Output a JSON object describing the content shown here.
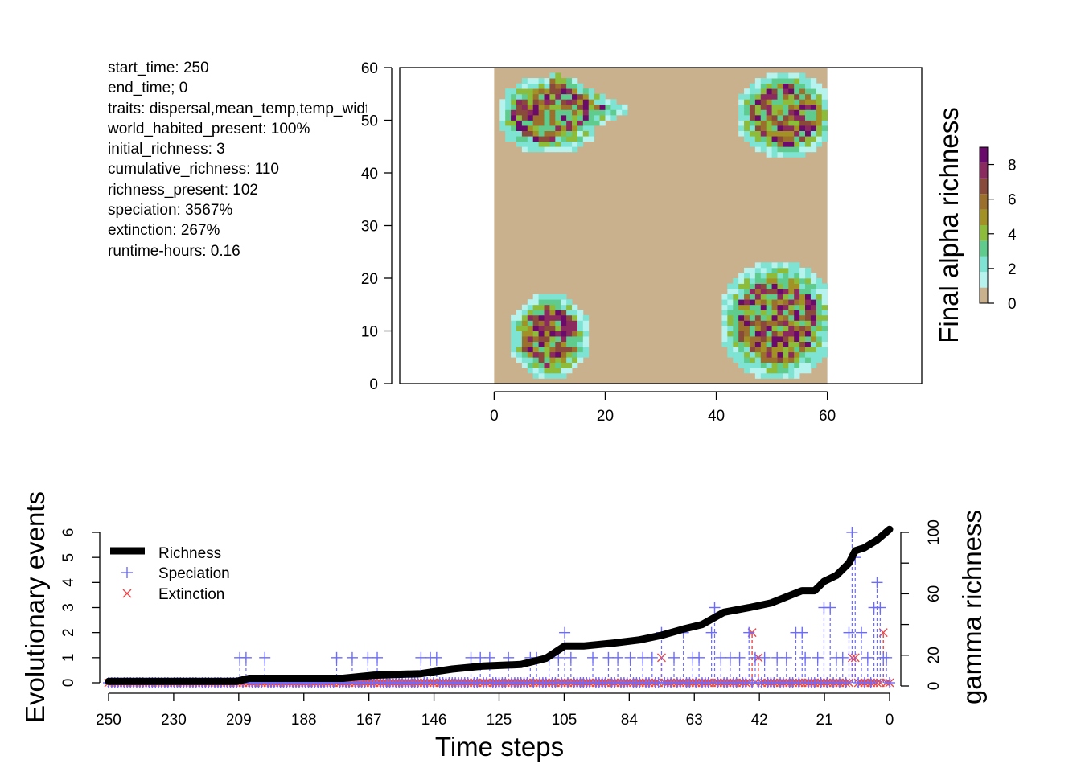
{
  "summary": [
    "start_time: 250",
    "end_time; 0",
    "traits: dispersal,mean_temp,temp_width",
    "world_habited_present: 100%",
    "initial_richness: 3",
    "cumulative_richness: 110",
    "richness_present: 102",
    "speciation: 3567%",
    "extinction: 267%",
    "runtime-hours: 0.16"
  ],
  "colors": {
    "background_cell": "#c8b18c",
    "richness_line": "#000000",
    "speciation": "#6b6bff",
    "extinction": "#e8474c",
    "richness_palette": [
      "#c8b18c",
      "#b6f2ee",
      "#7fe3d3",
      "#5fcc8e",
      "#8cbc3a",
      "#a29225",
      "#9b6f2c",
      "#8a4a3b",
      "#8a2a5e",
      "#6a0a6a"
    ]
  },
  "chart_data": [
    {
      "type": "heatmap",
      "xlabel": "",
      "ylabel": "",
      "xlim": [
        -17,
        77
      ],
      "ylim": [
        0,
        60
      ],
      "xticks": [
        0,
        20,
        40,
        60
      ],
      "yticks": [
        0,
        10,
        20,
        30,
        40,
        50,
        60
      ],
      "grid_extent": [
        0,
        60,
        0,
        60
      ],
      "colorbar": {
        "label": "Final alpha richness",
        "ticks": [
          0,
          2,
          4,
          6,
          8
        ],
        "range": [
          0,
          9
        ]
      },
      "patches": [
        {
          "center": [
            10,
            51
          ],
          "description": "upper-left teardrop patch",
          "max_richness": 9
        },
        {
          "center": [
            52,
            51
          ],
          "description": "upper-right patch",
          "max_richness": 9
        },
        {
          "center": [
            10,
            9
          ],
          "description": "lower-left patch",
          "max_richness": 9
        },
        {
          "center": [
            50,
            12
          ],
          "description": "lower-right patch",
          "max_richness": 9
        }
      ]
    },
    {
      "type": "line",
      "xlabel": "Time steps",
      "ylabel": "Evolutionary events",
      "ylabel_right": "gamma richness",
      "x_ticks": [
        "250",
        "230",
        "209",
        "188",
        "167",
        "146",
        "125",
        "105",
        "84",
        "63",
        "42",
        "21",
        "0"
      ],
      "xlim": [
        250,
        0
      ],
      "ylim_left": [
        0,
        6
      ],
      "yticks_left": [
        0,
        1,
        2,
        3,
        4,
        5,
        6
      ],
      "ylim_right": [
        0,
        100
      ],
      "yticks_right": [
        0,
        20,
        60,
        100
      ],
      "legend": {
        "position": "top-left",
        "entries": [
          "Richness",
          "Speciation",
          "Extinction"
        ]
      },
      "series": [
        {
          "name": "Richness",
          "axis": "right",
          "points": [
            [
              250,
              3
            ],
            [
              209,
              3
            ],
            [
              205,
              5
            ],
            [
              190,
              5
            ],
            [
              175,
              5
            ],
            [
              165,
              7
            ],
            [
              150,
              8
            ],
            [
              140,
              11
            ],
            [
              130,
              13
            ],
            [
              118,
              14
            ],
            [
              110,
              18
            ],
            [
              104,
              26
            ],
            [
              98,
              26
            ],
            [
              88,
              28
            ],
            [
              80,
              30
            ],
            [
              73,
              33
            ],
            [
              66,
              37
            ],
            [
              60,
              40
            ],
            [
              53,
              48
            ],
            [
              45,
              51
            ],
            [
              38,
              54
            ],
            [
              33,
              58
            ],
            [
              28,
              62
            ],
            [
              24,
              62
            ],
            [
              21,
              68
            ],
            [
              17,
              72
            ],
            [
              13,
              80
            ],
            [
              11,
              88
            ],
            [
              8,
              90
            ],
            [
              4,
              95
            ],
            [
              0,
              102
            ]
          ]
        },
        {
          "name": "Speciation",
          "axis": "left",
          "spikes": [
            [
              208,
              1
            ],
            [
              206,
              1
            ],
            [
              200,
              1
            ],
            [
              177,
              1
            ],
            [
              172,
              1
            ],
            [
              167,
              1
            ],
            [
              164,
              1
            ],
            [
              150,
              1
            ],
            [
              147,
              1
            ],
            [
              145,
              1
            ],
            [
              134,
              1
            ],
            [
              131,
              1
            ],
            [
              128,
              1
            ],
            [
              122,
              1
            ],
            [
              115,
              1
            ],
            [
              113,
              1
            ],
            [
              109,
              1
            ],
            [
              106,
              1
            ],
            [
              104,
              2
            ],
            [
              102,
              1
            ],
            [
              95,
              1
            ],
            [
              90,
              1
            ],
            [
              87,
              1
            ],
            [
              83,
              1
            ],
            [
              79,
              1
            ],
            [
              76,
              1
            ],
            [
              73,
              2
            ],
            [
              69,
              1
            ],
            [
              66,
              2
            ],
            [
              63,
              1
            ],
            [
              61,
              1
            ],
            [
              57,
              2
            ],
            [
              56,
              3
            ],
            [
              54,
              1
            ],
            [
              51,
              1
            ],
            [
              48,
              1
            ],
            [
              45,
              2
            ],
            [
              43,
              1
            ],
            [
              40,
              1
            ],
            [
              36,
              1
            ],
            [
              33,
              1
            ],
            [
              30,
              2
            ],
            [
              28,
              2
            ],
            [
              27,
              1
            ],
            [
              23,
              1
            ],
            [
              21,
              3
            ],
            [
              19,
              3
            ],
            [
              17,
              1
            ],
            [
              15,
              1
            ],
            [
              13,
              2
            ],
            [
              12,
              6
            ],
            [
              11,
              5
            ],
            [
              9,
              2
            ],
            [
              7,
              1
            ],
            [
              5,
              3
            ],
            [
              4,
              4
            ],
            [
              3,
              3
            ],
            [
              2,
              1
            ],
            [
              1,
              1
            ]
          ]
        },
        {
          "name": "Extinction",
          "axis": "left",
          "spikes": [
            [
              73,
              1
            ],
            [
              44,
              2
            ],
            [
              42,
              1
            ],
            [
              12,
              1
            ],
            [
              11,
              1
            ],
            [
              2,
              2
            ]
          ]
        }
      ]
    }
  ]
}
